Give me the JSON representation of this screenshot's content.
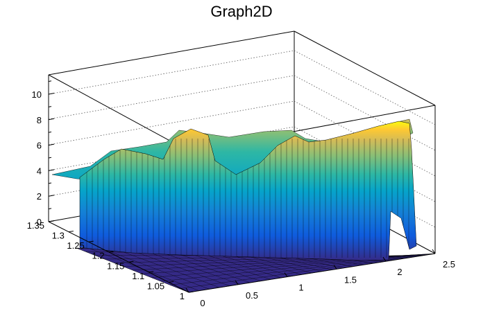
{
  "chart_data": {
    "type": "surface3d",
    "title": "Graph2D",
    "xlabel": "",
    "ylabel": "",
    "zlabel": "",
    "xlim": [
      0,
      2.5
    ],
    "ylim": [
      1,
      1.35
    ],
    "zlim": [
      0,
      11.5
    ],
    "x_ticks": [
      "0",
      "0.5",
      "1",
      "1.5",
      "2",
      "2.5"
    ],
    "y_ticks": [
      "1",
      "1.05",
      "1.1",
      "1.15",
      "1.2",
      "1.25",
      "1.3",
      "1.35"
    ],
    "z_ticks": [
      "0",
      "2",
      "4",
      "6",
      "8",
      "10"
    ],
    "colormap": [
      "#352a87",
      "#0f5cdd",
      "#1481d6",
      "#06a4ca",
      "#2eb7a4",
      "#87bf77",
      "#d1bb59",
      "#fec832",
      "#f9fb0e"
    ],
    "front_wall_samples": {
      "x": [
        0,
        0.2,
        0.4,
        0.6,
        0.8,
        1.0,
        1.2,
        1.4,
        1.6,
        1.8,
        2.0,
        2.2,
        2.4,
        2.5
      ],
      "z": [
        3.8,
        3.9,
        5.2,
        5.6,
        5.0,
        5.0,
        5.3,
        5.6,
        6.0,
        6.6,
        7.4,
        8.0,
        8.4,
        0.3
      ]
    },
    "peaks": [
      {
        "x": 0.8,
        "y": 1.3,
        "z": 7.0
      },
      {
        "x": 1.55,
        "y": 1.28,
        "z": 6.8
      }
    ]
  }
}
